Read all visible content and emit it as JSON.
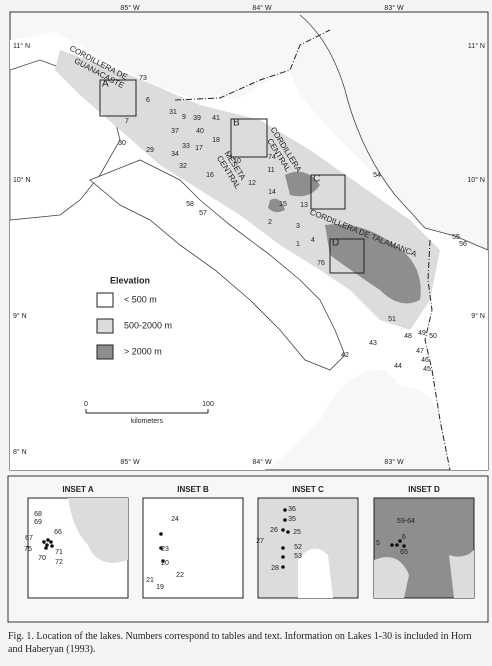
{
  "map": {
    "longitudes": [
      "85° W",
      "84° W",
      "83° W"
    ],
    "latitudes": [
      "11° N",
      "10° N",
      "9° N",
      "8° N"
    ],
    "regions": [
      [
        "CORDILLERA DE",
        "GUANACASTE"
      ],
      [
        "CORDILLERA",
        "CENTRAL"
      ],
      [
        "MESETA",
        "CENTRAL"
      ],
      [
        "CORDILLERA DE TALAMANCA"
      ]
    ],
    "inset_boxes": [
      "A",
      "B",
      "C",
      "D"
    ],
    "legend": {
      "title": "Elevation",
      "items": [
        "< 500 m",
        "500-2000 m",
        "> 2000 m"
      ]
    },
    "scale": {
      "labels": [
        "0",
        "100"
      ],
      "unit": "kilometers"
    },
    "lakes": [
      "73",
      "6",
      "7",
      "31",
      "9",
      "39",
      "37",
      "40",
      "33",
      "17",
      "34",
      "29",
      "30",
      "32",
      "41",
      "18",
      "16",
      "10",
      "74",
      "11",
      "12",
      "14",
      "58",
      "57",
      "15",
      "13",
      "2",
      "3",
      "1",
      "4",
      "76",
      "54",
      "55",
      "56",
      "51",
      "43",
      "48",
      "49",
      "50",
      "47",
      "46",
      "45",
      "44",
      "42"
    ]
  },
  "insets": [
    {
      "title": "INSET A",
      "lakes": [
        "68",
        "69",
        "66",
        "67",
        "75",
        "70",
        "71",
        "72"
      ]
    },
    {
      "title": "INSET B",
      "lakes": [
        "24",
        "23",
        "20",
        "22",
        "21",
        "19"
      ]
    },
    {
      "title": "INSET C",
      "lakes": [
        "36",
        "35",
        "26",
        "25",
        "27",
        "52",
        "53",
        "28"
      ]
    },
    {
      "title": "INSET D",
      "lakes": [
        "59-64",
        "5",
        "6",
        "65"
      ]
    }
  ],
  "caption": "Fig. 1. Location of the lakes. Numbers correspond to tables and text. Information on Lakes 1-30 is included in Horn and Haberyan (1993)."
}
